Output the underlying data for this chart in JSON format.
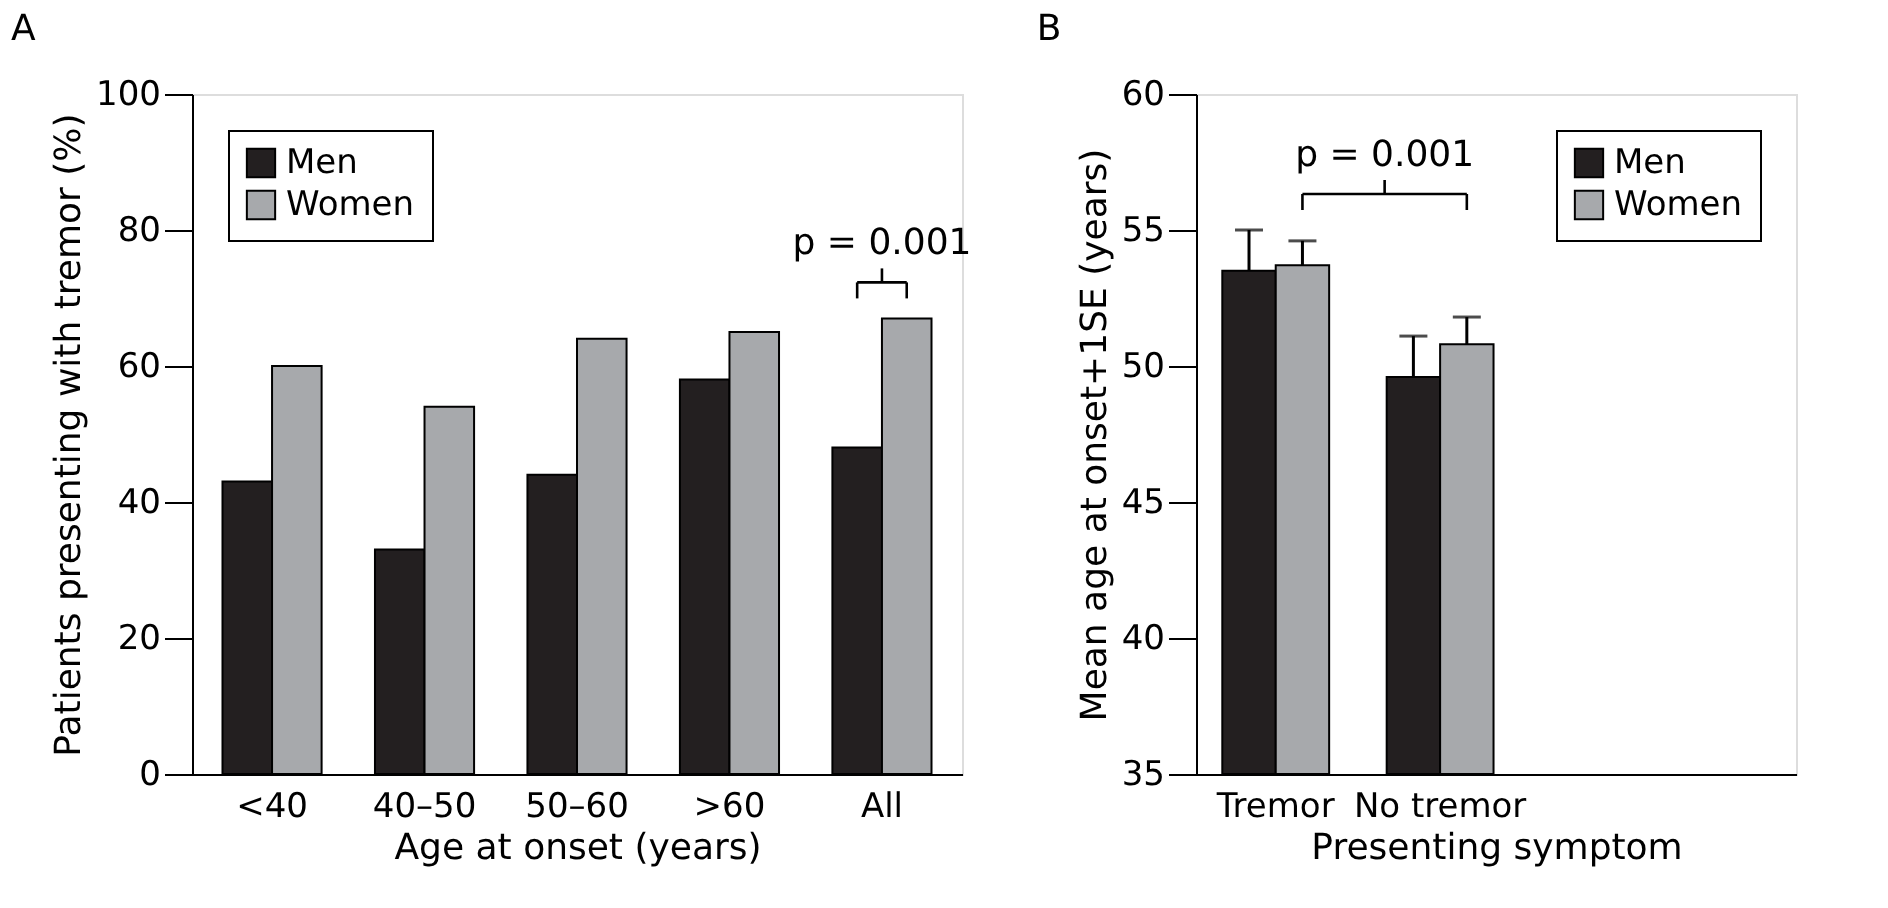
{
  "chart_data": [
    {
      "type": "bar",
      "title": "A",
      "xlabel": "Age at onset (years)",
      "ylabel": "Patients presenting with tremor (%)",
      "categories": [
        "<40",
        "40–50",
        "50–60",
        ">60",
        "All"
      ],
      "series": [
        {
          "name": "Men",
          "color": "#231f20",
          "values": [
            43,
            33,
            44,
            58,
            48
          ]
        },
        {
          "name": "Women",
          "color": "#a7a9ac",
          "values": [
            60,
            54,
            64,
            65,
            67
          ]
        }
      ],
      "ylim": [
        0,
        100
      ],
      "yticks": [
        0,
        20,
        40,
        60,
        80,
        100
      ],
      "grid": false,
      "legend": "top left",
      "annotations": [
        "p = 0.001"
      ]
    },
    {
      "type": "bar",
      "title": "B",
      "xlabel": "Presenting symptom",
      "ylabel": "Mean age at onset+1SE (years)",
      "categories": [
        "Tremor",
        "No tremor"
      ],
      "series": [
        {
          "name": "Men",
          "color": "#231f20",
          "values": [
            53.5,
            49.6
          ],
          "errors": [
            [
              53.5,
              55.0
            ],
            [
              49.6,
              51.1
            ]
          ]
        },
        {
          "name": "Women",
          "color": "#a7a9ac",
          "values": [
            53.7,
            50.8
          ],
          "errors": [
            [
              53.7,
              54.6
            ],
            [
              50.8,
              51.8
            ]
          ]
        }
      ],
      "ylim": [
        35,
        60
      ],
      "yticks": [
        35,
        40,
        45,
        50,
        55,
        60
      ],
      "grid": false,
      "legend": "top right",
      "annotations": [
        "p = 0.001"
      ]
    }
  ]
}
